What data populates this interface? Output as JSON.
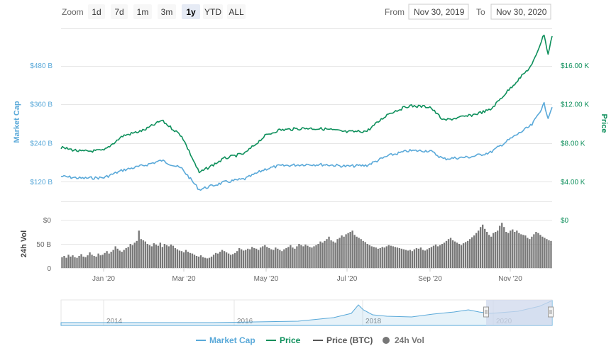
{
  "range_selector": {
    "zoom_label": "Zoom",
    "buttons": [
      "1d",
      "7d",
      "1m",
      "3m",
      "1y",
      "YTD",
      "ALL"
    ],
    "selected": "1y",
    "from_label": "From",
    "from_value": "Nov 30, 2019",
    "to_label": "To",
    "to_value": "Nov 30, 2020"
  },
  "colors": {
    "market_cap": "#5aa9d9",
    "price": "#0d8f5b",
    "price_btc": "#555555",
    "volume": "#777777",
    "navigator_fill": "#cfd8ec"
  },
  "chart_data": {
    "type": "line",
    "x_range": [
      "2019-11-30",
      "2020-11-30"
    ],
    "axes": {
      "market_cap": {
        "title": "Market Cap",
        "ticks": [
          "$120 B",
          "$240 B",
          "$360 B",
          "$480 B"
        ],
        "values": [
          120,
          240,
          360,
          480
        ],
        "unit": "B USD"
      },
      "price": {
        "title": "Price",
        "ticks": [
          "$4.00 K",
          "$8.00 K",
          "$12.00 K",
          "$16.00 K"
        ],
        "values": [
          4,
          8,
          12,
          16
        ],
        "unit": "K USD"
      },
      "volume": {
        "title": "24h Vol",
        "ticks": [
          "$0",
          "50 B",
          "0"
        ],
        "right_tick": "$0"
      },
      "x_ticks": [
        "Jan '20",
        "Mar '20",
        "May '20",
        "Jul '20",
        "Sep '20",
        "Nov '20"
      ]
    },
    "series": [
      {
        "name": "Market Cap",
        "axis": "market_cap",
        "points": [
          [
            "2019-11-30",
            136
          ],
          [
            "2019-12-15",
            130
          ],
          [
            "2020-01-01",
            132
          ],
          [
            "2020-01-15",
            155
          ],
          [
            "2020-01-31",
            170
          ],
          [
            "2020-02-13",
            185
          ],
          [
            "2020-02-28",
            160
          ],
          [
            "2020-03-12",
            95
          ],
          [
            "2020-03-31",
            118
          ],
          [
            "2020-04-15",
            128
          ],
          [
            "2020-04-30",
            158
          ],
          [
            "2020-05-10",
            168
          ],
          [
            "2020-05-31",
            173
          ],
          [
            "2020-06-15",
            172
          ],
          [
            "2020-06-30",
            167
          ],
          [
            "2020-07-15",
            170
          ],
          [
            "2020-07-31",
            200
          ],
          [
            "2020-08-15",
            215
          ],
          [
            "2020-08-31",
            215
          ],
          [
            "2020-09-10",
            190
          ],
          [
            "2020-09-30",
            196
          ],
          [
            "2020-10-15",
            210
          ],
          [
            "2020-10-31",
            255
          ],
          [
            "2020-11-15",
            295
          ],
          [
            "2020-11-24",
            360
          ],
          [
            "2020-11-27",
            318
          ],
          [
            "2020-11-30",
            350
          ]
        ]
      },
      {
        "name": "Price",
        "axis": "price",
        "points": [
          [
            "2019-11-30",
            7.5
          ],
          [
            "2019-12-15",
            7.1
          ],
          [
            "2020-01-01",
            7.2
          ],
          [
            "2020-01-15",
            8.7
          ],
          [
            "2020-01-31",
            9.3
          ],
          [
            "2020-02-13",
            10.3
          ],
          [
            "2020-02-28",
            8.7
          ],
          [
            "2020-03-12",
            4.9
          ],
          [
            "2020-03-31",
            6.4
          ],
          [
            "2020-04-15",
            6.9
          ],
          [
            "2020-04-30",
            8.7
          ],
          [
            "2020-05-10",
            9.3
          ],
          [
            "2020-05-31",
            9.5
          ],
          [
            "2020-06-15",
            9.4
          ],
          [
            "2020-06-30",
            9.1
          ],
          [
            "2020-07-15",
            9.2
          ],
          [
            "2020-07-31",
            11.0
          ],
          [
            "2020-08-15",
            11.8
          ],
          [
            "2020-08-31",
            11.7
          ],
          [
            "2020-09-10",
            10.3
          ],
          [
            "2020-09-30",
            10.8
          ],
          [
            "2020-10-15",
            11.4
          ],
          [
            "2020-10-31",
            13.8
          ],
          [
            "2020-11-15",
            16.0
          ],
          [
            "2020-11-24",
            19.2
          ],
          [
            "2020-11-27",
            17.1
          ],
          [
            "2020-11-30",
            19.0
          ]
        ]
      }
    ],
    "volume": [
      18,
      20,
      17,
      22,
      19,
      21,
      18,
      17,
      20,
      23,
      19,
      18,
      21,
      26,
      22,
      20,
      19,
      24,
      21,
      22,
      25,
      28,
      24,
      27,
      30,
      36,
      32,
      29,
      27,
      30,
      33,
      35,
      40,
      38,
      42,
      45,
      62,
      48,
      46,
      44,
      40,
      38,
      36,
      41,
      39,
      37,
      42,
      35,
      40,
      38,
      36,
      39,
      37,
      33,
      31,
      29,
      28,
      26,
      30,
      27,
      25,
      24,
      22,
      20,
      19,
      21,
      18,
      17,
      16,
      17,
      19,
      22,
      25,
      24,
      27,
      30,
      28,
      26,
      24,
      22,
      23,
      25,
      28,
      33,
      31,
      29,
      30,
      32,
      31,
      35,
      33,
      32,
      30,
      34,
      36,
      38,
      35,
      33,
      31,
      30,
      34,
      32,
      30,
      28,
      31,
      33,
      35,
      38,
      34,
      32,
      36,
      40,
      38,
      36,
      39,
      37,
      35,
      34,
      36,
      38,
      40,
      44,
      42,
      45,
      48,
      52,
      46,
      44,
      42,
      48,
      50,
      54,
      52,
      56,
      58,
      60,
      62,
      55,
      52,
      50,
      48,
      45,
      43,
      40,
      38,
      36,
      35,
      34,
      32,
      33,
      35,
      34,
      36,
      38,
      37,
      36,
      35,
      34,
      33,
      32,
      31,
      30,
      29,
      30,
      28,
      31,
      33,
      32,
      34,
      30,
      29,
      31,
      33,
      35,
      37,
      39,
      36,
      38,
      40,
      42,
      45,
      48,
      50,
      46,
      44,
      42,
      40,
      38,
      41,
      43,
      45,
      48,
      51,
      54,
      58,
      62,
      68,
      72,
      65,
      60,
      55,
      52,
      58,
      60,
      62,
      70,
      75,
      68,
      60,
      58,
      62,
      64,
      60,
      62,
      58,
      56,
      55,
      54,
      50,
      48,
      52,
      56,
      60,
      58,
      55,
      52,
      50,
      48,
      46,
      45
    ],
    "volume_max": 80,
    "navigator": {
      "x_ticks": [
        "2014",
        "2016",
        "2018",
        "2020"
      ],
      "selected_range": [
        "2019-11-30",
        "2020-11-30"
      ]
    }
  },
  "legend": [
    {
      "name": "Market Cap",
      "symbol": "line",
      "color": "#5aa9d9"
    },
    {
      "name": "Price",
      "symbol": "line",
      "color": "#0d8f5b"
    },
    {
      "name": "Price (BTC)",
      "symbol": "line",
      "color": "#555555"
    },
    {
      "name": "24h Vol",
      "symbol": "circle",
      "color": "#777777"
    }
  ]
}
